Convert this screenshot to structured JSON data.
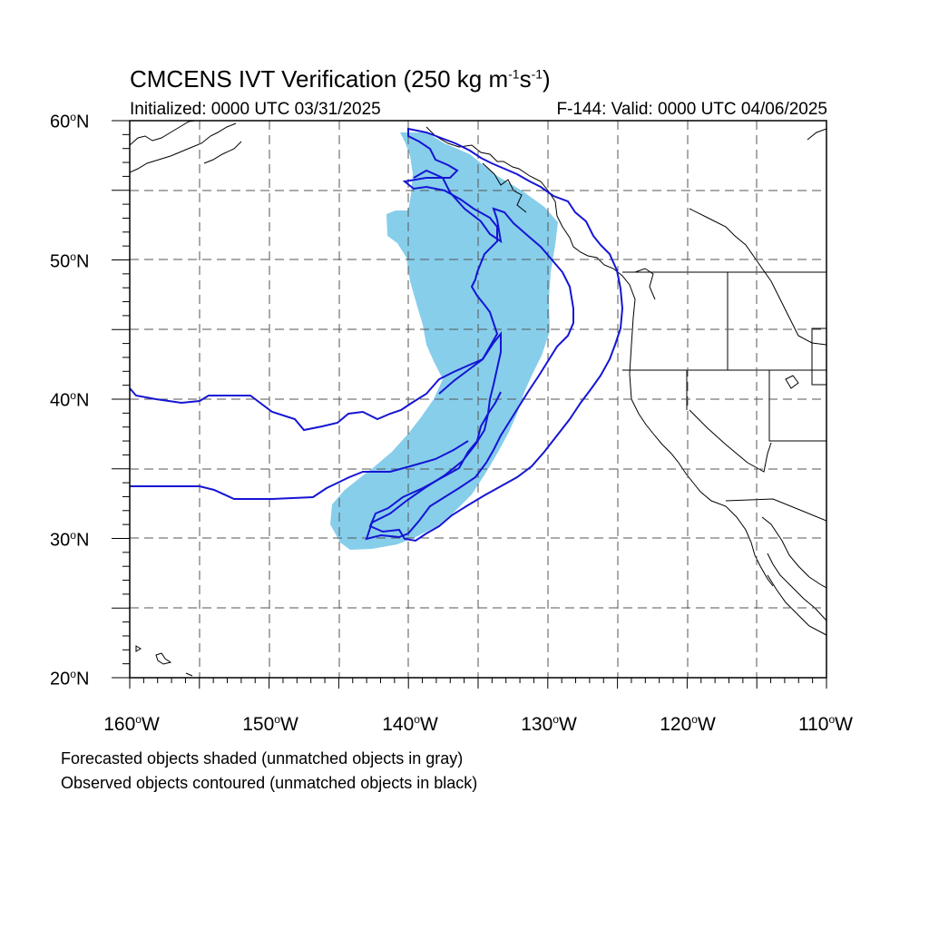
{
  "title": {
    "main": "CMCENS IVT Verification (250 kg m",
    "sup1": "-1",
    "mid": "s",
    "sup2": "-1",
    "close": ")"
  },
  "initialized": "Initialized: 0000 UTC 03/31/2025",
  "valid": "F-144: Valid: 0000 UTC 04/06/2025",
  "lat_labels": {
    "lat60": {
      "base": "60",
      "deg": "o",
      "hemi": "N"
    },
    "lat50": {
      "base": "50",
      "deg": "o",
      "hemi": "N"
    },
    "lat40": {
      "base": "40",
      "deg": "o",
      "hemi": "N"
    },
    "lat30": {
      "base": "30",
      "deg": "o",
      "hemi": "N"
    },
    "lat20": {
      "base": "20",
      "deg": "o",
      "hemi": "N"
    }
  },
  "lon_labels": {
    "lon160": {
      "base": "160",
      "deg": "o",
      "hemi": "W"
    },
    "lon150": {
      "base": "150",
      "deg": "o",
      "hemi": "W"
    },
    "lon140": {
      "base": "140",
      "deg": "o",
      "hemi": "W"
    },
    "lon130": {
      "base": "130",
      "deg": "o",
      "hemi": "W"
    },
    "lon120": {
      "base": "120",
      "deg": "o",
      "hemi": "W"
    },
    "lon110": {
      "base": "110",
      "deg": "o",
      "hemi": "W"
    }
  },
  "footnotes": {
    "forecast": "Forecasted objects shaded (unmatched objects in gray)",
    "observed": "Observed objects contoured (unmatched objects in black)"
  },
  "colors": {
    "forecast_fill": "#87ceeb",
    "observed_contour": "#1515d4",
    "coastline": "#000000",
    "grid": "#555555"
  },
  "map": {
    "lon_range": [
      -160,
      -110
    ],
    "lat_range": [
      20,
      60
    ],
    "grid_lon_step": 5,
    "grid_lat_step": 5
  }
}
